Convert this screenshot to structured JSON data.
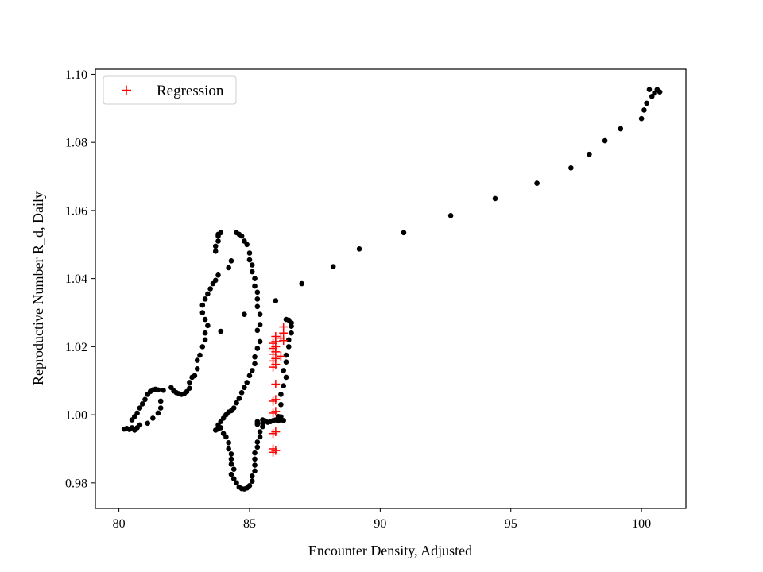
{
  "chart_data": {
    "type": "scatter",
    "xlabel": "Encounter Density, Adjusted",
    "ylabel": "Reproductive Number R_d, Daily",
    "xlim": [
      79.1,
      101.7
    ],
    "ylim": [
      0.9725,
      1.1015
    ],
    "xticks": [
      80,
      85,
      90,
      95,
      100
    ],
    "xtick_labels": [
      "80",
      "85",
      "90",
      "95",
      "100"
    ],
    "yticks": [
      0.98,
      1.0,
      1.02,
      1.04,
      1.06,
      1.08,
      1.1
    ],
    "ytick_labels": [
      "0.98",
      "1.00",
      "1.02",
      "1.04",
      "1.06",
      "1.08",
      "1.10"
    ],
    "grid": false,
    "legend": {
      "position": "top-left",
      "entries": [
        "Regression"
      ]
    },
    "series": [
      {
        "name": "",
        "marker": "circle",
        "color": "#000000",
        "points": [
          [
            80.2,
            0.9958
          ],
          [
            80.3,
            0.996
          ],
          [
            80.4,
            0.9957
          ],
          [
            80.5,
            0.9962
          ],
          [
            80.6,
            0.9955
          ],
          [
            80.7,
            0.9962
          ],
          [
            80.8,
            0.997
          ],
          [
            80.5,
            0.9985
          ],
          [
            80.6,
            0.9995
          ],
          [
            80.7,
            1.0005
          ],
          [
            80.8,
            1.002
          ],
          [
            80.9,
            1.0032
          ],
          [
            81.0,
            1.0045
          ],
          [
            81.1,
            1.006
          ],
          [
            81.2,
            1.0068
          ],
          [
            81.3,
            1.0073
          ],
          [
            81.4,
            1.0075
          ],
          [
            81.5,
            1.0073
          ],
          [
            81.7,
            1.0072
          ],
          [
            81.1,
            0.9975
          ],
          [
            81.3,
            0.999
          ],
          [
            81.5,
            1.0005
          ],
          [
            81.6,
            1.002
          ],
          [
            81.6,
            1.004
          ],
          [
            82.0,
            1.008
          ],
          [
            82.1,
            1.007
          ],
          [
            82.2,
            1.0065
          ],
          [
            82.3,
            1.0062
          ],
          [
            82.4,
            1.006
          ],
          [
            82.5,
            1.0062
          ],
          [
            82.6,
            1.0068
          ],
          [
            82.7,
            1.0078
          ],
          [
            82.7,
            1.0095
          ],
          [
            82.8,
            1.011
          ],
          [
            82.9,
            1.0115
          ],
          [
            83.0,
            1.0135
          ],
          [
            83.0,
            1.016
          ],
          [
            83.1,
            1.0175
          ],
          [
            83.2,
            1.02
          ],
          [
            83.3,
            1.022
          ],
          [
            83.3,
            1.024
          ],
          [
            83.4,
            1.0262
          ],
          [
            83.3,
            1.028
          ],
          [
            83.2,
            1.03
          ],
          [
            83.2,
            1.0322
          ],
          [
            83.3,
            1.034
          ],
          [
            83.4,
            1.0355
          ],
          [
            83.5,
            1.037
          ],
          [
            83.6,
            1.0385
          ],
          [
            83.7,
            1.0395
          ],
          [
            83.8,
            1.041
          ],
          [
            83.7,
            1.048
          ],
          [
            83.7,
            1.0495
          ],
          [
            83.8,
            1.051
          ],
          [
            83.8,
            1.0525
          ],
          [
            83.9,
            1.0535
          ],
          [
            83.8,
            1.053
          ],
          [
            84.2,
            1.0432
          ],
          [
            84.3,
            1.0452
          ],
          [
            83.9,
            1.0245
          ],
          [
            84.5,
            1.0535
          ],
          [
            84.6,
            1.053
          ],
          [
            84.7,
            1.0525
          ],
          [
            84.8,
            1.051
          ],
          [
            84.9,
            1.05
          ],
          [
            85.0,
            1.0475
          ],
          [
            85.0,
            1.0455
          ],
          [
            85.1,
            1.044
          ],
          [
            85.1,
            1.042
          ],
          [
            85.2,
            1.04
          ],
          [
            85.2,
            1.0378
          ],
          [
            85.3,
            1.036
          ],
          [
            85.3,
            1.034
          ],
          [
            85.3,
            1.0318
          ],
          [
            85.4,
            1.0295
          ],
          [
            85.4,
            1.0265
          ],
          [
            85.3,
            1.0248
          ],
          [
            85.4,
            1.0215
          ],
          [
            85.3,
            1.0195
          ],
          [
            85.2,
            1.017
          ],
          [
            85.2,
            1.015
          ],
          [
            85.1,
            1.013
          ],
          [
            85.0,
            1.0115
          ],
          [
            84.9,
            1.0095
          ],
          [
            84.8,
            1.008
          ],
          [
            84.7,
            1.0065
          ],
          [
            84.6,
            1.0048
          ],
          [
            84.5,
            1.0035
          ],
          [
            84.4,
            1.002
          ],
          [
            84.3,
            1.0012
          ],
          [
            84.2,
            1.0008
          ],
          [
            84.1,
            1.0
          ],
          [
            84.0,
            0.999
          ],
          [
            83.9,
            0.998
          ],
          [
            83.8,
            0.997
          ],
          [
            83.7,
            0.9955
          ],
          [
            83.8,
            0.9958
          ],
          [
            83.9,
            0.9962
          ],
          [
            84.0,
            0.9945
          ],
          [
            84.1,
            0.9935
          ],
          [
            84.2,
            0.9918
          ],
          [
            84.2,
            0.99
          ],
          [
            84.3,
            0.9885
          ],
          [
            84.3,
            0.987
          ],
          [
            84.3,
            0.9855
          ],
          [
            84.4,
            0.984
          ],
          [
            84.3,
            0.9825
          ],
          [
            84.4,
            0.9812
          ],
          [
            84.5,
            0.98
          ],
          [
            84.6,
            0.9788
          ],
          [
            84.7,
            0.9783
          ],
          [
            84.8,
            0.9782
          ],
          [
            84.9,
            0.9785
          ],
          [
            85.0,
            0.9792
          ],
          [
            85.1,
            0.9805
          ],
          [
            85.1,
            0.982
          ],
          [
            85.2,
            0.9835
          ],
          [
            85.2,
            0.9852
          ],
          [
            85.2,
            0.987
          ],
          [
            85.2,
            0.9888
          ],
          [
            85.3,
            0.9905
          ],
          [
            85.3,
            0.992
          ],
          [
            85.4,
            0.9935
          ],
          [
            85.4,
            0.995
          ],
          [
            85.5,
            0.9965
          ],
          [
            85.5,
            0.9975
          ],
          [
            85.3,
            0.998
          ],
          [
            85.3,
            0.9972
          ],
          [
            85.5,
            0.9985
          ],
          [
            85.6,
            0.9982
          ],
          [
            85.7,
            0.9978
          ],
          [
            85.8,
            0.998
          ],
          [
            85.9,
            0.9983
          ],
          [
            86.0,
            0.9985
          ],
          [
            86.1,
            0.9982
          ],
          [
            86.2,
            0.9986
          ],
          [
            86.3,
            0.9983
          ],
          [
            86.2,
            0.9994
          ],
          [
            84.8,
            1.0295
          ],
          [
            86.0,
            1.0335
          ],
          [
            86.1,
            0.9995
          ],
          [
            86.2,
            1.003
          ],
          [
            86.2,
            1.006
          ],
          [
            86.3,
            1.0085
          ],
          [
            86.4,
            1.011
          ],
          [
            86.3,
            1.013
          ],
          [
            86.4,
            1.0155
          ],
          [
            86.4,
            1.0175
          ],
          [
            86.5,
            1.02
          ],
          [
            86.5,
            1.022
          ],
          [
            86.6,
            1.024
          ],
          [
            86.6,
            1.026
          ],
          [
            86.6,
            1.027
          ],
          [
            86.5,
            1.0278
          ],
          [
            86.4,
            1.028
          ],
          [
            87.0,
            1.0385
          ],
          [
            88.2,
            1.0435
          ],
          [
            89.2,
            1.0487
          ],
          [
            90.9,
            1.0535
          ],
          [
            92.7,
            1.0585
          ],
          [
            94.4,
            1.0635
          ],
          [
            96.0,
            1.068
          ],
          [
            97.3,
            1.0725
          ],
          [
            98.0,
            1.0765
          ],
          [
            98.6,
            1.0805
          ],
          [
            99.2,
            1.084
          ],
          [
            100.0,
            1.087
          ],
          [
            100.1,
            1.0895
          ],
          [
            100.2,
            1.0915
          ],
          [
            100.3,
            1.0955
          ],
          [
            100.4,
            1.0935
          ],
          [
            100.5,
            1.0945
          ],
          [
            100.6,
            1.0955
          ],
          [
            100.7,
            1.0948
          ]
        ]
      },
      {
        "name": "Regression",
        "marker": "plus",
        "color": "#ff0000",
        "points": [
          [
            85.9,
            0.989
          ],
          [
            85.9,
            0.99
          ],
          [
            86.0,
            0.9895
          ],
          [
            85.9,
            0.9945
          ],
          [
            86.0,
            0.995
          ],
          [
            85.9,
            1.0005
          ],
          [
            86.0,
            1.001
          ],
          [
            85.9,
            1.004
          ],
          [
            86.0,
            1.0045
          ],
          [
            86.0,
            1.009
          ],
          [
            85.9,
            1.014
          ],
          [
            86.0,
            1.0148
          ],
          [
            85.9,
            1.0158
          ],
          [
            86.0,
            1.0165
          ],
          [
            85.9,
            1.0178
          ],
          [
            86.0,
            1.0185
          ],
          [
            85.9,
            1.0195
          ],
          [
            86.0,
            1.02
          ],
          [
            85.9,
            1.021
          ],
          [
            86.0,
            1.0215
          ],
          [
            86.0,
            1.023
          ],
          [
            86.2,
            1.0225
          ],
          [
            86.3,
            1.0218
          ],
          [
            86.2,
            1.0172
          ],
          [
            86.3,
            1.024
          ],
          [
            86.3,
            1.0258
          ]
        ]
      }
    ]
  }
}
